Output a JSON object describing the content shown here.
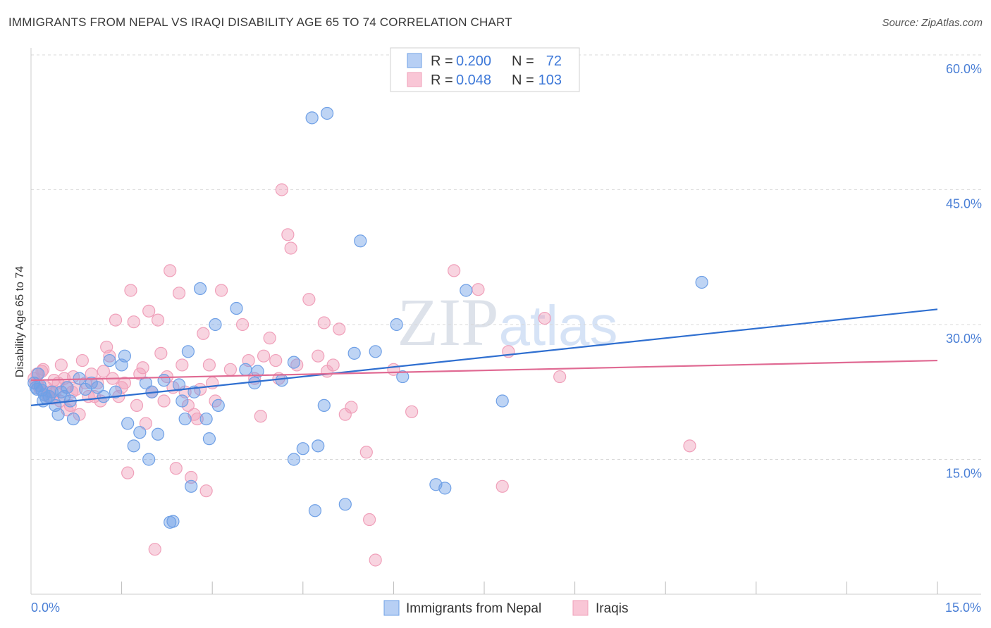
{
  "title": "IMMIGRANTS FROM NEPAL VS IRAQI DISABILITY AGE 65 TO 74 CORRELATION CHART",
  "source": "Source: ZipAtlas.com",
  "watermark": "ZIPatlas",
  "colors": {
    "blue": "#6fa0e6",
    "blue_line": "#2f6fd0",
    "pink": "#f0a0ba",
    "pink_line": "#e06a93",
    "tick": "#4a7fd6",
    "grid": "#d8d8d8"
  },
  "chart_data": {
    "type": "scatter",
    "ylabel": "Disability Age 65 to 74",
    "xlabel": "",
    "xlim": [
      0,
      15
    ],
    "ylim": [
      0,
      63
    ],
    "x_tick_labels": [
      "0.0%",
      "15.0%"
    ],
    "y_ticks": [
      15,
      30,
      45,
      60
    ],
    "y_tick_labels": [
      "15.0%",
      "30.0%",
      "45.0%",
      "60.0%"
    ],
    "legend": [
      {
        "name": "Immigrants from Nepal",
        "r_label": "R =",
        "r": "0.200",
        "n_label": "N =",
        "n": "72"
      },
      {
        "name": "Iraqis",
        "r_label": "R =",
        "r": "0.048",
        "n_label": "N =",
        "n": "103"
      }
    ],
    "series": [
      {
        "name": "Immigrants from Nepal",
        "trend": [
          [
            0,
            21.0
          ],
          [
            15,
            31.7
          ]
        ],
        "points": [
          [
            0.05,
            23.5
          ],
          [
            0.1,
            22.8
          ],
          [
            0.15,
            23.2
          ],
          [
            0.2,
            21.5
          ],
          [
            0.25,
            21.8
          ],
          [
            0.3,
            22.0
          ],
          [
            0.35,
            22.5
          ],
          [
            0.4,
            21.0
          ],
          [
            0.45,
            20.0
          ],
          [
            0.5,
            22.5
          ],
          [
            0.55,
            22.0
          ],
          [
            0.6,
            23.0
          ],
          [
            0.65,
            21.5
          ],
          [
            0.7,
            19.5
          ],
          [
            0.8,
            24.0
          ],
          [
            0.9,
            22.8
          ],
          [
            1.0,
            23.5
          ],
          [
            1.1,
            23.0
          ],
          [
            1.2,
            22.0
          ],
          [
            1.3,
            26.0
          ],
          [
            1.4,
            22.5
          ],
          [
            1.5,
            25.5
          ],
          [
            1.55,
            26.5
          ],
          [
            1.6,
            19.0
          ],
          [
            1.7,
            16.5
          ],
          [
            1.8,
            18.0
          ],
          [
            1.9,
            23.5
          ],
          [
            1.95,
            15.0
          ],
          [
            2.0,
            22.5
          ],
          [
            2.1,
            17.8
          ],
          [
            2.2,
            23.8
          ],
          [
            2.3,
            8.0
          ],
          [
            2.35,
            8.1
          ],
          [
            2.45,
            23.3
          ],
          [
            2.5,
            21.5
          ],
          [
            2.55,
            19.5
          ],
          [
            2.6,
            27.0
          ],
          [
            2.65,
            12.0
          ],
          [
            2.7,
            22.5
          ],
          [
            2.8,
            34.0
          ],
          [
            2.9,
            19.5
          ],
          [
            2.95,
            17.3
          ],
          [
            3.05,
            30.0
          ],
          [
            3.1,
            21.0
          ],
          [
            3.4,
            31.8
          ],
          [
            3.55,
            25.0
          ],
          [
            3.7,
            23.5
          ],
          [
            3.75,
            24.8
          ],
          [
            4.15,
            23.8
          ],
          [
            4.35,
            25.8
          ],
          [
            4.35,
            15.0
          ],
          [
            4.5,
            16.2
          ],
          [
            4.7,
            9.3
          ],
          [
            4.75,
            16.5
          ],
          [
            4.85,
            21.0
          ],
          [
            4.65,
            53.0
          ],
          [
            4.9,
            53.5
          ],
          [
            5.2,
            10.0
          ],
          [
            5.35,
            26.8
          ],
          [
            5.45,
            39.3
          ],
          [
            5.7,
            27.0
          ],
          [
            6.05,
            30.0
          ],
          [
            6.15,
            24.2
          ],
          [
            6.7,
            12.2
          ],
          [
            6.85,
            11.8
          ],
          [
            7.2,
            33.8
          ],
          [
            7.8,
            21.5
          ],
          [
            11.1,
            34.7
          ],
          [
            0.08,
            23.0
          ],
          [
            0.12,
            24.5
          ],
          [
            0.18,
            22.7
          ],
          [
            0.22,
            22.2
          ]
        ]
      },
      {
        "name": "Iraqis",
        "trend": [
          [
            0,
            23.8
          ],
          [
            15,
            26.0
          ]
        ],
        "points": [
          [
            0.05,
            24.0
          ],
          [
            0.08,
            23.5
          ],
          [
            0.1,
            24.5
          ],
          [
            0.12,
            23.2
          ],
          [
            0.15,
            22.8
          ],
          [
            0.2,
            25.0
          ],
          [
            0.25,
            23.0
          ],
          [
            0.3,
            22.5
          ],
          [
            0.35,
            21.8
          ],
          [
            0.4,
            22.5
          ],
          [
            0.45,
            23.5
          ],
          [
            0.5,
            25.5
          ],
          [
            0.55,
            24.0
          ],
          [
            0.6,
            20.5
          ],
          [
            0.65,
            21.0
          ],
          [
            0.7,
            24.2
          ],
          [
            0.75,
            22.8
          ],
          [
            0.8,
            20.0
          ],
          [
            0.85,
            26.0
          ],
          [
            0.9,
            23.5
          ],
          [
            0.95,
            22.0
          ],
          [
            1.0,
            24.5
          ],
          [
            1.05,
            22.0
          ],
          [
            1.1,
            23.5
          ],
          [
            1.15,
            21.5
          ],
          [
            1.2,
            24.8
          ],
          [
            1.25,
            27.5
          ],
          [
            1.3,
            26.5
          ],
          [
            1.35,
            24.0
          ],
          [
            1.4,
            30.5
          ],
          [
            1.45,
            22.0
          ],
          [
            1.5,
            23.0
          ],
          [
            1.55,
            23.5
          ],
          [
            1.6,
            13.5
          ],
          [
            1.65,
            33.8
          ],
          [
            1.7,
            30.3
          ],
          [
            1.75,
            21.0
          ],
          [
            1.8,
            24.5
          ],
          [
            1.85,
            25.2
          ],
          [
            1.9,
            19.0
          ],
          [
            1.95,
            31.5
          ],
          [
            2.0,
            22.5
          ],
          [
            2.05,
            5.0
          ],
          [
            2.1,
            30.5
          ],
          [
            2.15,
            26.8
          ],
          [
            2.2,
            21.5
          ],
          [
            2.25,
            24.2
          ],
          [
            2.3,
            36.0
          ],
          [
            2.35,
            23.0
          ],
          [
            2.4,
            14.0
          ],
          [
            2.45,
            33.5
          ],
          [
            2.5,
            25.5
          ],
          [
            2.55,
            22.5
          ],
          [
            2.6,
            21.0
          ],
          [
            2.65,
            13.0
          ],
          [
            2.7,
            20.0
          ],
          [
            2.75,
            19.5
          ],
          [
            2.8,
            22.8
          ],
          [
            2.85,
            29.0
          ],
          [
            2.9,
            11.5
          ],
          [
            2.95,
            25.5
          ],
          [
            3.0,
            23.5
          ],
          [
            3.05,
            21.5
          ],
          [
            3.15,
            33.8
          ],
          [
            3.3,
            25.0
          ],
          [
            3.5,
            30.0
          ],
          [
            3.6,
            26.0
          ],
          [
            3.7,
            24.0
          ],
          [
            3.8,
            19.8
          ],
          [
            3.85,
            26.5
          ],
          [
            3.95,
            28.5
          ],
          [
            4.05,
            26.0
          ],
          [
            4.1,
            24.0
          ],
          [
            4.15,
            45.0
          ],
          [
            4.25,
            40.0
          ],
          [
            4.3,
            38.5
          ],
          [
            4.4,
            25.5
          ],
          [
            4.6,
            32.8
          ],
          [
            4.75,
            26.5
          ],
          [
            4.85,
            30.2
          ],
          [
            4.9,
            24.8
          ],
          [
            5.0,
            25.5
          ],
          [
            5.1,
            29.5
          ],
          [
            5.2,
            20.0
          ],
          [
            5.3,
            20.8
          ],
          [
            5.55,
            15.8
          ],
          [
            5.6,
            8.3
          ],
          [
            5.7,
            3.8
          ],
          [
            6.0,
            25.0
          ],
          [
            6.3,
            20.3
          ],
          [
            7.0,
            36.0
          ],
          [
            7.4,
            33.9
          ],
          [
            7.8,
            12.0
          ],
          [
            7.9,
            27.0
          ],
          [
            8.5,
            30.7
          ],
          [
            8.75,
            24.2
          ],
          [
            10.9,
            16.5
          ],
          [
            0.18,
            24.8
          ],
          [
            0.28,
            22.0
          ],
          [
            0.38,
            23.8
          ],
          [
            0.48,
            21.5
          ],
          [
            0.58,
            23.0
          ],
          [
            0.68,
            22.5
          ]
        ]
      }
    ]
  }
}
